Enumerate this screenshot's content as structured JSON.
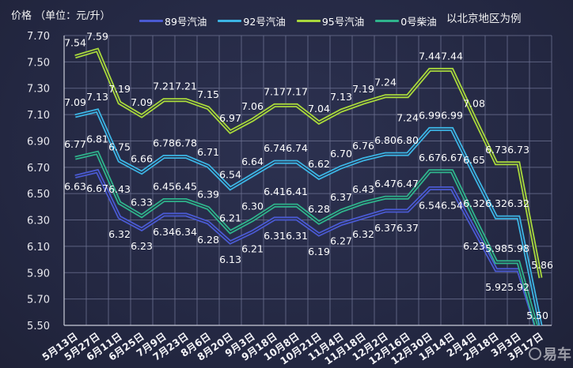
{
  "header": {
    "y_title": "价格 （单位：元/升）",
    "note": "以北京地区为例"
  },
  "watermark": {
    "label": "易车"
  },
  "colors": {
    "background": "#262a44",
    "grid": "#6b7090",
    "axis": "#c9cbd8"
  },
  "chart_data": {
    "type": "line",
    "title": "",
    "xlabel": "",
    "ylabel": "价格 （单位：元/升）",
    "ylim": [
      5.5,
      7.7
    ],
    "yticks": [
      5.5,
      5.7,
      5.9,
      6.1,
      6.3,
      6.5,
      6.7,
      6.9,
      7.1,
      7.3,
      7.5,
      7.7
    ],
    "grid": true,
    "legend_position": "top",
    "annotation": "以北京地区为例",
    "categories": [
      "5月13日",
      "5月27日",
      "6月11日",
      "6月25日",
      "7月9日",
      "7月23日",
      "8月6日",
      "8月20日",
      "9月3日",
      "9月18日",
      "10月8日",
      "10月21日",
      "11月4日",
      "11月18日",
      "12月2日",
      "12月16日",
      "12月30日",
      "1月14日",
      "2月4日",
      "2月18日",
      "3月3日",
      "3月17日"
    ],
    "series": [
      {
        "name": "89号汽油",
        "color": "#4a5ad2",
        "values": [
          6.63,
          6.67,
          6.32,
          6.23,
          6.34,
          6.34,
          6.28,
          6.13,
          6.21,
          6.31,
          6.31,
          6.19,
          6.27,
          6.32,
          6.37,
          6.37,
          6.54,
          6.54,
          6.23,
          5.92,
          5.92,
          null
        ],
        "end_below_axis": true
      },
      {
        "name": "92号汽油",
        "color": "#3cb4e4",
        "values": [
          7.09,
          7.13,
          6.75,
          6.66,
          6.78,
          6.78,
          6.71,
          6.54,
          6.64,
          6.74,
          6.74,
          6.62,
          6.7,
          6.76,
          6.8,
          6.8,
          6.99,
          6.99,
          6.65,
          6.32,
          6.32,
          5.5
        ]
      },
      {
        "name": "95号汽油",
        "color": "#a8d83c",
        "values": [
          7.54,
          7.59,
          7.19,
          7.09,
          7.21,
          7.21,
          7.15,
          6.97,
          7.06,
          7.17,
          7.17,
          7.04,
          7.13,
          7.19,
          7.24,
          7.24,
          7.44,
          7.44,
          7.08,
          6.73,
          6.73,
          5.86
        ]
      },
      {
        "name": "0号柴油",
        "color": "#2fb38c",
        "values": [
          6.77,
          6.81,
          6.43,
          6.33,
          6.45,
          6.45,
          6.39,
          6.21,
          6.3,
          6.41,
          6.41,
          6.28,
          6.37,
          6.43,
          6.47,
          6.47,
          6.67,
          6.67,
          6.32,
          5.98,
          5.98,
          null
        ],
        "end_below_axis": true
      }
    ]
  }
}
